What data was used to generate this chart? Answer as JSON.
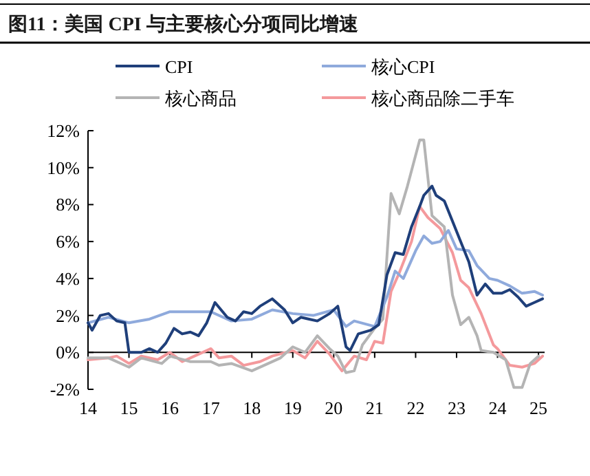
{
  "chart_data": {
    "type": "line",
    "title": "图11：美国 CPI 与主要核心分项同比增速",
    "xlim": [
      2014,
      2025.15
    ],
    "xticks": [
      {
        "value": 2014,
        "label": "14"
      },
      {
        "value": 2015,
        "label": "15"
      },
      {
        "value": 2016,
        "label": "16"
      },
      {
        "value": 2017,
        "label": "17"
      },
      {
        "value": 2018,
        "label": "18"
      },
      {
        "value": 2019,
        "label": "19"
      },
      {
        "value": 2020,
        "label": "20"
      },
      {
        "value": 2021,
        "label": "21"
      },
      {
        "value": 2022,
        "label": "22"
      },
      {
        "value": 2023,
        "label": "23"
      },
      {
        "value": 2024,
        "label": "24"
      },
      {
        "value": 2025,
        "label": "25"
      }
    ],
    "ylim": [
      -2,
      12
    ],
    "yticks": [
      {
        "value": -2,
        "label": "-2%"
      },
      {
        "value": 0,
        "label": "0%"
      },
      {
        "value": 2,
        "label": "2%"
      },
      {
        "value": 4,
        "label": "4%"
      },
      {
        "value": 6,
        "label": "6%"
      },
      {
        "value": 8,
        "label": "8%"
      },
      {
        "value": 10,
        "label": "10%"
      },
      {
        "value": 12,
        "label": "12%"
      }
    ],
    "grid": false,
    "legend": "top",
    "marker": "none",
    "line_style": "solid",
    "series": [
      {
        "name": "CPI",
        "color": "#1f3f7a",
        "x": [
          2014,
          2014.1,
          2014.3,
          2014.5,
          2014.7,
          2014.9,
          2015,
          2015.3,
          2015.5,
          2015.7,
          2015.9,
          2016.1,
          2016.3,
          2016.5,
          2016.7,
          2016.9,
          2017.1,
          2017.4,
          2017.6,
          2017.8,
          2018,
          2018.2,
          2018.5,
          2018.6,
          2018.8,
          2019,
          2019.2,
          2019.4,
          2019.6,
          2019.9,
          2020.1,
          2020.3,
          2020.4,
          2020.6,
          2020.9,
          2021.1,
          2021.3,
          2021.5,
          2021.7,
          2021.9,
          2022.1,
          2022.2,
          2022.4,
          2022.5,
          2022.7,
          2022.9,
          2023.1,
          2023.3,
          2023.4,
          2023.5,
          2023.7,
          2023.9,
          2024.1,
          2024.3,
          2024.5,
          2024.7,
          2024.9,
          2025.1
        ],
        "values": [
          1.6,
          1.2,
          2.0,
          2.1,
          1.7,
          1.6,
          0.0,
          0.0,
          0.2,
          0.0,
          0.5,
          1.3,
          1.0,
          1.1,
          0.9,
          1.6,
          2.7,
          1.9,
          1.7,
          2.2,
          2.1,
          2.5,
          2.9,
          2.7,
          2.3,
          1.6,
          1.9,
          1.8,
          1.7,
          2.1,
          2.5,
          0.3,
          0.1,
          1.0,
          1.2,
          1.5,
          4.2,
          5.4,
          5.3,
          6.8,
          7.9,
          8.5,
          9.0,
          8.5,
          8.2,
          7.1,
          6.0,
          4.9,
          4.0,
          3.1,
          3.7,
          3.2,
          3.2,
          3.4,
          3.0,
          2.5,
          2.7,
          2.9
        ]
      },
      {
        "name": "核心CPI",
        "color": "#8faadc",
        "x": [
          2014,
          2014.5,
          2015,
          2015.5,
          2016,
          2016.5,
          2017,
          2017.5,
          2018,
          2018.5,
          2019,
          2019.5,
          2020,
          2020.3,
          2020.5,
          2021,
          2021.3,
          2021.5,
          2021.7,
          2022,
          2022.2,
          2022.4,
          2022.6,
          2022.8,
          2023,
          2023.3,
          2023.5,
          2023.8,
          2024,
          2024.3,
          2024.6,
          2024.9,
          2025.1
        ],
        "values": [
          1.6,
          1.9,
          1.6,
          1.8,
          2.2,
          2.2,
          2.2,
          1.7,
          1.8,
          2.3,
          2.1,
          2.0,
          2.3,
          1.4,
          1.7,
          1.4,
          3.0,
          4.4,
          4.0,
          5.5,
          6.3,
          5.9,
          6.0,
          6.6,
          5.6,
          5.5,
          4.7,
          4.0,
          3.9,
          3.6,
          3.2,
          3.3,
          3.1
        ]
      },
      {
        "name": "核心商品",
        "color": "#b4b4b4",
        "x": [
          2014,
          2014.5,
          2015,
          2015.3,
          2015.8,
          2016,
          2016.5,
          2017,
          2017.2,
          2017.5,
          2018,
          2018.3,
          2018.7,
          2019,
          2019.3,
          2019.6,
          2019.9,
          2020.1,
          2020.3,
          2020.5,
          2020.7,
          2021,
          2021.2,
          2021.4,
          2021.6,
          2021.8,
          2022.1,
          2022.2,
          2022.4,
          2022.7,
          2022.9,
          2023.1,
          2023.3,
          2023.5,
          2023.6,
          2023.9,
          2024.2,
          2024.4,
          2024.6,
          2024.8,
          2025
        ],
        "values": [
          -0.3,
          -0.3,
          -0.8,
          -0.3,
          -0.6,
          -0.2,
          -0.5,
          -0.5,
          -0.7,
          -0.6,
          -1.0,
          -0.7,
          -0.3,
          0.3,
          0.0,
          0.9,
          0.2,
          -0.2,
          -1.1,
          -1.0,
          0.4,
          1.3,
          1.8,
          8.6,
          7.5,
          9.0,
          11.5,
          11.5,
          7.4,
          6.8,
          3.1,
          1.5,
          1.9,
          0.9,
          0.1,
          0.0,
          -0.4,
          -1.9,
          -1.9,
          -0.6,
          -0.2
        ]
      },
      {
        "name": "核心商品除二手车",
        "color": "#f4999c",
        "x": [
          2014,
          2014.5,
          2014.7,
          2015,
          2015.3,
          2015.7,
          2016,
          2016.3,
          2016.6,
          2017,
          2017.2,
          2017.5,
          2017.8,
          2018.2,
          2018.5,
          2019,
          2019.3,
          2019.6,
          2019.9,
          2020.2,
          2020.5,
          2020.8,
          2021,
          2021.2,
          2021.4,
          2021.6,
          2021.9,
          2022.1,
          2022.3,
          2022.6,
          2022.9,
          2023.1,
          2023.3,
          2023.6,
          2023.9,
          2024,
          2024.3,
          2024.6,
          2024.9,
          2025.1
        ],
        "values": [
          -0.4,
          -0.3,
          -0.2,
          -0.6,
          -0.2,
          -0.4,
          0.0,
          -0.5,
          -0.2,
          0.2,
          -0.3,
          -0.2,
          -0.7,
          -0.5,
          -0.2,
          0.1,
          -0.3,
          0.6,
          -0.1,
          -1.0,
          -0.2,
          -0.4,
          0.6,
          0.5,
          3.3,
          4.3,
          6.0,
          7.9,
          7.3,
          6.7,
          5.4,
          3.9,
          3.5,
          2.1,
          0.4,
          0.2,
          -0.7,
          -0.8,
          -0.6,
          -0.2
        ]
      }
    ]
  }
}
